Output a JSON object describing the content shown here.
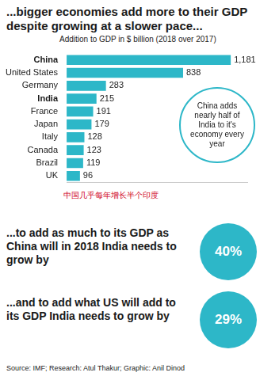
{
  "chart_data": {
    "type": "bar",
    "orientation": "horizontal",
    "title": "...bigger economies add more to their GDP despite growing at a slower pace...",
    "subtitle": "Addition to GDP in $ billion (2018 over 2017)",
    "categories": [
      "China",
      "United States",
      "Germany",
      "India",
      "France",
      "Japan",
      "Italy",
      "Canada",
      "Brazil",
      "UK"
    ],
    "values": [
      1181,
      838,
      283,
      215,
      191,
      179,
      128,
      123,
      119,
      96
    ],
    "value_labels": [
      "1,181",
      "838",
      "283",
      "215",
      "191",
      "179",
      "128",
      "123",
      "119",
      "96"
    ],
    "color": "#2db7c8",
    "data_labels": true,
    "tick_labels": "y",
    "grid": false,
    "xlim": [
      0,
      1300
    ],
    "annotations": [
      "China adds nearly half of India to it's economy every year",
      "中国几乎每年增长半个印度"
    ]
  },
  "facts": [
    {
      "text": "...to add as much to its GDP as China will in 2018 India needs to grow by",
      "value": "40%"
    },
    {
      "text": "...and to add what US will add to its GDP India needs to grow by",
      "value": "29%"
    }
  ],
  "source": "Source: IMF; Research: Atul Thakur; Graphic: Anil Dinod"
}
